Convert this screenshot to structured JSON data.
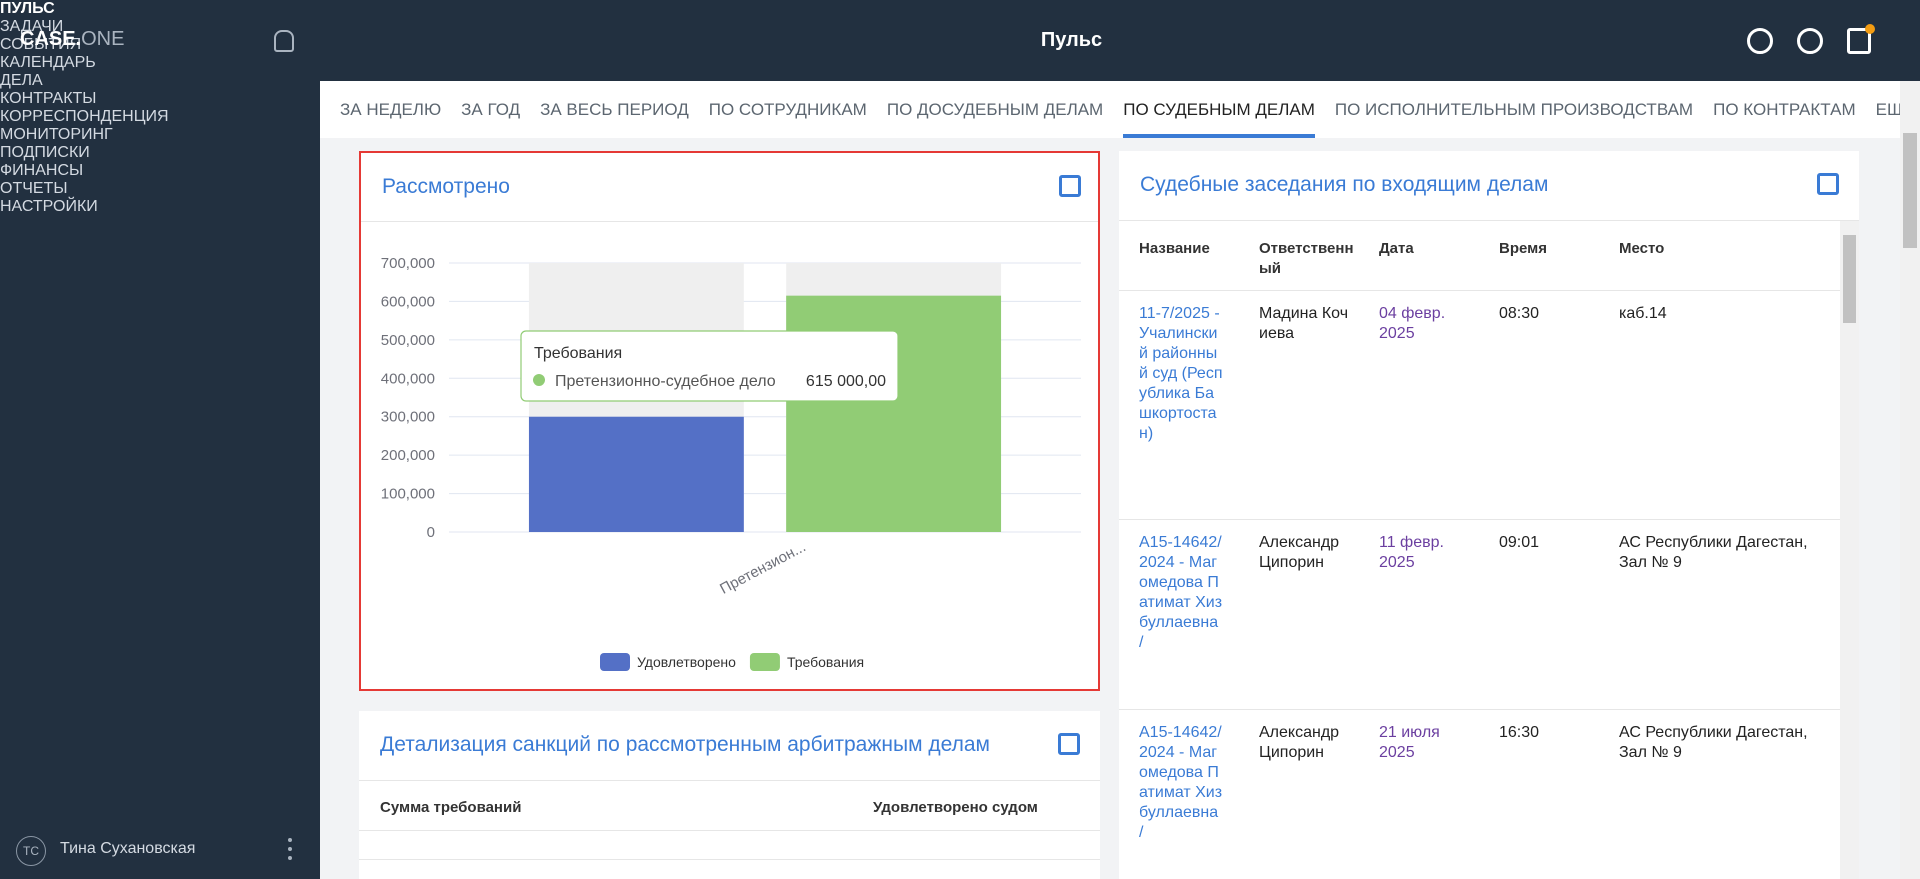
{
  "app": {
    "logo_main": "CASE.",
    "logo_accent": "ONE",
    "header_title": "Пульс",
    "menu": [
      "ПУЛЬС",
      "ЗАДАЧИ",
      "СОБЫТИЯ",
      "КАЛЕНДАРЬ",
      "ДЕЛА",
      "КОНТРАКТЫ",
      "КОРРЕСПОНДЕНЦИЯ",
      "МОНИТОРИНГ",
      "ПОДПИСКИ",
      "ФИНАНСЫ",
      "ОТЧЕТЫ",
      "НАСТРОЙКИ"
    ],
    "user_initials": "ТС",
    "user_name": "Тина Сухановская",
    "tabs": [
      "ЗА НЕДЕЛЮ",
      "ЗА ГОД",
      "ЗА ВЕСЬ ПЕРИОД",
      "ПО СОТРУДНИКАМ",
      "ПО ДОСУДЕБНЫМ ДЕЛАМ",
      "ПО СУДЕБНЫМ ДЕЛАМ",
      "ПО ИСПОЛНИТЕЛЬНЫМ ПРОИЗВОДСТВАМ",
      "ПО КОНТРАКТАМ",
      "ЕЩЕ"
    ],
    "sessions": {
      "title": "Судебные заседания по входящим делам",
      "columns": [
        "Название",
        "Ответственный",
        "Дата",
        "Время",
        "Место"
      ],
      "rows": [
        [
          "11-7/2025 - Учалинский районный суд (Республика Башкортостан)",
          "Мадина Кочиева",
          "04 февр. 2025",
          "08:30",
          "каб.14"
        ],
        [
          "А15-14642/2024 - Магомедова Патимат Хизбуллаевна /",
          "Александр Ципорин",
          "11 февр. 2025",
          "09:01",
          "АС Республики Дагестан, Зал № 9"
        ],
        [
          "А15-14642/2024 - Магомедова Патимат Хизбуллаевна /",
          "Александр Ципорин",
          "21 июля 2025",
          "16:30",
          "АС Республики Дагестан, Зал № 9"
        ]
      ]
    },
    "sanctions": {
      "title": "Детализация санкций по рассмотренным арбитражным делам",
      "columns": [
        "Сумма требований",
        "Удовлетворено судом"
      ]
    }
  },
  "chart_data": {
    "type": "bar",
    "title": "Рассмотрено",
    "categories": [
      "Претензион..."
    ],
    "series": [
      {
        "name": "Удовлетворено",
        "color": "#5470c6",
        "values": [
          300000
        ]
      },
      {
        "name": "Требования",
        "color": "#91cc75",
        "values": [
          615000
        ],
        "value_labels": [
          "615 000,00"
        ]
      }
    ],
    "ylim": [
      0,
      700000
    ],
    "yticks": [
      {
        "value": 0,
        "label": "0"
      },
      {
        "value": 100000,
        "label": "100,000"
      },
      {
        "value": 200000,
        "label": "200,000"
      },
      {
        "value": 300000,
        "label": "300,000"
      },
      {
        "value": 400000,
        "label": "400,000"
      },
      {
        "value": 500000,
        "label": "500,000"
      },
      {
        "value": 600000,
        "label": "600,000"
      },
      {
        "value": 700000,
        "label": "700,000"
      }
    ],
    "grid": true,
    "legend": "bottom",
    "tooltip": {
      "series": "Требования",
      "category": "Претензионно-судебное дело"
    }
  }
}
